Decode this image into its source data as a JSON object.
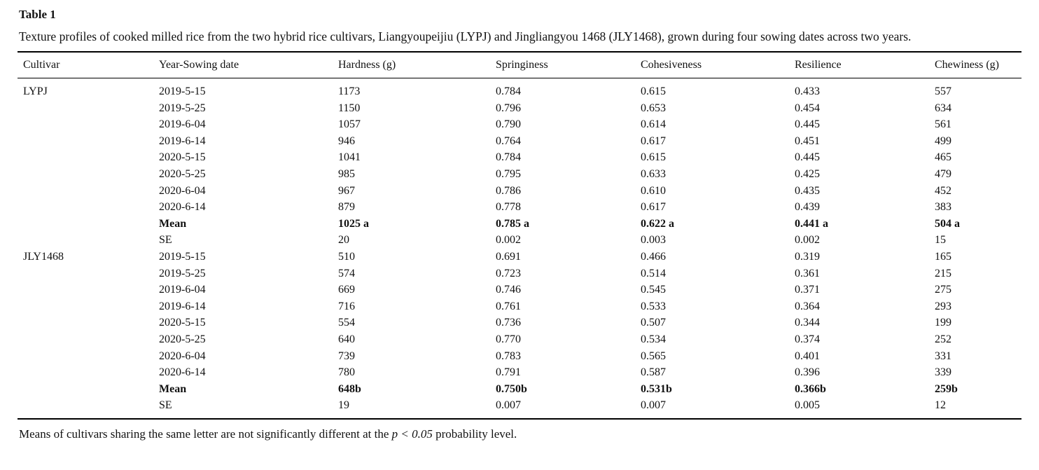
{
  "caption": {
    "label": "Table 1",
    "text": "Texture profiles of cooked milled rice from the two hybrid rice cultivars, Liangyoupeijiu (LYPJ) and Jingliangyou 1468 (JLY1468), grown during four sowing dates across two years."
  },
  "table": {
    "columns": [
      "Cultivar",
      "Year-Sowing date",
      "Hardness (g)",
      "Springiness",
      "Cohesiveness",
      "Resilience",
      "Chewiness (g)"
    ],
    "groups": [
      {
        "cultivar": "LYPJ",
        "rows": [
          {
            "label": "2019-5-15",
            "values": [
              "1173",
              "0.784",
              "0.615",
              "0.433",
              "557"
            ],
            "bold": false
          },
          {
            "label": "2019-5-25",
            "values": [
              "1150",
              "0.796",
              "0.653",
              "0.454",
              "634"
            ],
            "bold": false
          },
          {
            "label": "2019-6-04",
            "values": [
              "1057",
              "0.790",
              "0.614",
              "0.445",
              "561"
            ],
            "bold": false
          },
          {
            "label": "2019-6-14",
            "values": [
              "946",
              "0.764",
              "0.617",
              "0.451",
              "499"
            ],
            "bold": false
          },
          {
            "label": "2020-5-15",
            "values": [
              "1041",
              "0.784",
              "0.615",
              "0.445",
              "465"
            ],
            "bold": false
          },
          {
            "label": "2020-5-25",
            "values": [
              "985",
              "0.795",
              "0.633",
              "0.425",
              "479"
            ],
            "bold": false
          },
          {
            "label": "2020-6-04",
            "values": [
              "967",
              "0.786",
              "0.610",
              "0.435",
              "452"
            ],
            "bold": false
          },
          {
            "label": "2020-6-14",
            "values": [
              "879",
              "0.778",
              "0.617",
              "0.439",
              "383"
            ],
            "bold": false
          },
          {
            "label": "Mean",
            "values": [
              "1025 a",
              "0.785 a",
              "0.622 a",
              "0.441 a",
              "504 a"
            ],
            "bold": true
          },
          {
            "label": "SE",
            "values": [
              "20",
              "0.002",
              "0.003",
              "0.002",
              "15"
            ],
            "bold": false
          }
        ]
      },
      {
        "cultivar": "JLY1468",
        "rows": [
          {
            "label": "2019-5-15",
            "values": [
              "510",
              "0.691",
              "0.466",
              "0.319",
              "165"
            ],
            "bold": false
          },
          {
            "label": "2019-5-25",
            "values": [
              "574",
              "0.723",
              "0.514",
              "0.361",
              "215"
            ],
            "bold": false
          },
          {
            "label": "2019-6-04",
            "values": [
              "669",
              "0.746",
              "0.545",
              "0.371",
              "275"
            ],
            "bold": false
          },
          {
            "label": "2019-6-14",
            "values": [
              "716",
              "0.761",
              "0.533",
              "0.364",
              "293"
            ],
            "bold": false
          },
          {
            "label": "2020-5-15",
            "values": [
              "554",
              "0.736",
              "0.507",
              "0.344",
              "199"
            ],
            "bold": false
          },
          {
            "label": "2020-5-25",
            "values": [
              "640",
              "0.770",
              "0.534",
              "0.374",
              "252"
            ],
            "bold": false
          },
          {
            "label": "2020-6-04",
            "values": [
              "739",
              "0.783",
              "0.565",
              "0.401",
              "331"
            ],
            "bold": false
          },
          {
            "label": "2020-6-14",
            "values": [
              "780",
              "0.791",
              "0.587",
              "0.396",
              "339"
            ],
            "bold": false
          },
          {
            "label": "Mean",
            "values": [
              "648b",
              "0.750b",
              "0.531b",
              "0.366b",
              "259b"
            ],
            "bold": true
          },
          {
            "label": "SE",
            "values": [
              "19",
              "0.007",
              "0.007",
              "0.005",
              "12"
            ],
            "bold": false
          }
        ]
      }
    ]
  },
  "footnote": {
    "prefix": "Means of cultivars sharing the same letter are not significantly different at the ",
    "italic": "p < 0.05",
    "suffix": " probability level."
  }
}
